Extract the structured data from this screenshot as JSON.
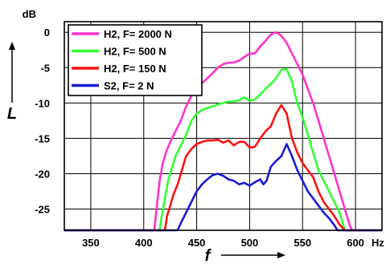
{
  "chart_data": {
    "type": "line",
    "xlabel": "f",
    "ylabel": "L",
    "x_unit": "Hz",
    "y_unit": "dB",
    "xlim": [
      325,
      625
    ],
    "ylim": [
      -28,
      1.5
    ],
    "x_ticks": [
      350,
      400,
      450,
      500,
      550,
      600
    ],
    "y_ticks": [
      0,
      -5,
      -10,
      -15,
      -20,
      -25
    ],
    "grid": true,
    "legend_position": "top-left",
    "series": [
      {
        "name": "H2, F= 2000 N",
        "color": "#ff33cc",
        "x": [
          325,
          410,
          412,
          415,
          418,
          421,
          425,
          430,
          435,
          440,
          445,
          450,
          455,
          460,
          465,
          470,
          475,
          480,
          485,
          490,
          495,
          500,
          505,
          510,
          515,
          520,
          525,
          530,
          535,
          540,
          545,
          550,
          555,
          560,
          565,
          570,
          575,
          580,
          585,
          590,
          593,
          595,
          597,
          600,
          625
        ],
        "y": [
          -28,
          -28,
          -25,
          -21,
          -18.5,
          -17,
          -15.5,
          -14,
          -12.5,
          -10.5,
          -9,
          -8,
          -7.2,
          -6.5,
          -5.8,
          -5,
          -4.5,
          -4.3,
          -4.3,
          -4,
          -3.5,
          -3,
          -3,
          -2,
          -1.2,
          -0.3,
          0,
          -0.5,
          -1.5,
          -3,
          -4.5,
          -6,
          -8,
          -10,
          -12.5,
          -15,
          -17.5,
          -20,
          -22.5,
          -25,
          -26.5,
          -27.5,
          -28,
          -28,
          -28
        ]
      },
      {
        "name": "H2, F= 500 N",
        "color": "#33ff33",
        "x": [
          325,
          415,
          417,
          420,
          423,
          426,
          430,
          435,
          440,
          445,
          450,
          455,
          460,
          465,
          470,
          475,
          480,
          485,
          490,
          495,
          500,
          505,
          510,
          515,
          520,
          525,
          530,
          535,
          540,
          545,
          550,
          555,
          560,
          565,
          570,
          575,
          580,
          585,
          588,
          590,
          625
        ],
        "y": [
          -28,
          -28,
          -26,
          -23.5,
          -21,
          -19.5,
          -17.5,
          -16,
          -14.5,
          -12.5,
          -11.5,
          -11,
          -10.7,
          -10.5,
          -10.2,
          -10,
          -9.8,
          -9.8,
          -9.6,
          -9.2,
          -9.7,
          -9.5,
          -8.8,
          -8,
          -7.3,
          -6.5,
          -5.3,
          -5.2,
          -7,
          -10,
          -12,
          -14.5,
          -17,
          -19.5,
          -21,
          -22.5,
          -24,
          -25.5,
          -27,
          -28,
          -28
        ]
      },
      {
        "name": "H2, F= 150 N",
        "color": "#ff1111",
        "x": [
          325,
          420,
          422,
          425,
          428,
          432,
          436,
          440,
          445,
          450,
          455,
          460,
          465,
          470,
          475,
          480,
          485,
          490,
          495,
          500,
          505,
          510,
          515,
          520,
          525,
          530,
          535,
          540,
          545,
          550,
          555,
          560,
          565,
          570,
          575,
          580,
          585,
          590,
          625
        ],
        "y": [
          -28,
          -28,
          -26,
          -24.5,
          -23,
          -21.5,
          -19.5,
          -17.5,
          -16.5,
          -15.8,
          -15.5,
          -15.3,
          -15.3,
          -15.2,
          -15.6,
          -15.3,
          -16,
          -15.5,
          -15.5,
          -16.3,
          -16.2,
          -15,
          -14,
          -13.3,
          -11.5,
          -10.3,
          -11.5,
          -15,
          -17,
          -18.5,
          -19.5,
          -20.5,
          -22.5,
          -24,
          -25,
          -26,
          -27.2,
          -28,
          -28
        ]
      },
      {
        "name": "S2, F= 2 N",
        "color": "#1a1ad6",
        "x": [
          325,
          432,
          435,
          440,
          445,
          450,
          455,
          460,
          465,
          470,
          475,
          480,
          485,
          490,
          495,
          500,
          505,
          510,
          513,
          516,
          520,
          525,
          530,
          535,
          540,
          545,
          550,
          555,
          560,
          565,
          570,
          575,
          580,
          583,
          625
        ],
        "y": [
          -28,
          -28,
          -27,
          -25.5,
          -24,
          -22.5,
          -21.5,
          -20.8,
          -20.2,
          -20,
          -20.3,
          -20.8,
          -21,
          -21.5,
          -21.3,
          -21.7,
          -21.2,
          -20.8,
          -21.5,
          -21,
          -19,
          -18.2,
          -17.5,
          -15.8,
          -17.5,
          -19.5,
          -21,
          -22.5,
          -23.5,
          -24.5,
          -25.5,
          -26.3,
          -27.3,
          -28,
          -28
        ]
      }
    ]
  }
}
